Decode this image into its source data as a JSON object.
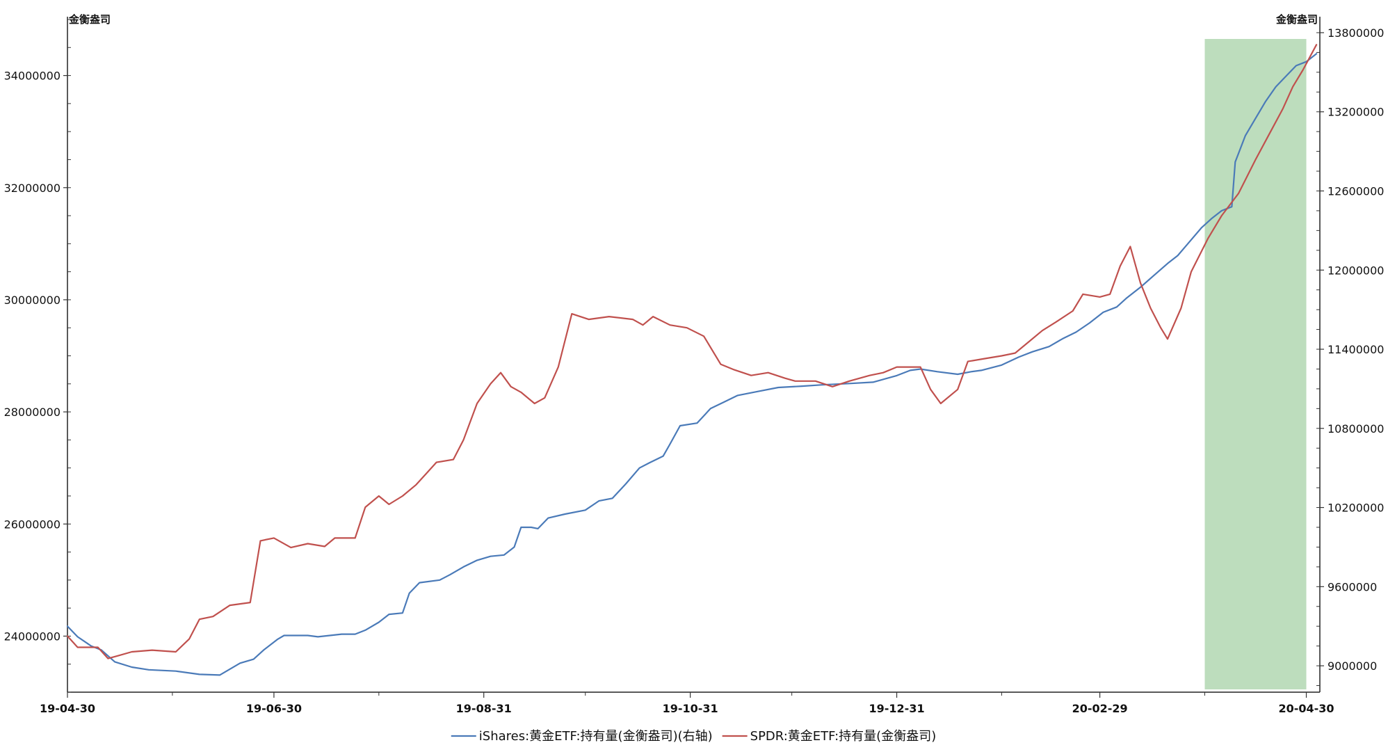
{
  "chart_data": {
    "type": "line",
    "left_axis": {
      "unit_label": "金衡盎司",
      "ylim": [
        23000000,
        35000000
      ],
      "ticks": [
        24000000,
        26000000,
        28000000,
        30000000,
        32000000,
        34000000
      ],
      "tick_labels": [
        "24000000",
        "26000000",
        "28000000",
        "30000000",
        "32000000",
        "34000000"
      ]
    },
    "right_axis": {
      "unit_label": "金衡盎司",
      "ylim": [
        8800000,
        13900000
      ],
      "ticks": [
        9000000,
        9600000,
        10200000,
        10800000,
        11400000,
        12000000,
        12600000,
        13200000,
        13800000
      ],
      "tick_labels": [
        "9000000",
        "9600000",
        "10200000",
        "10800000",
        "11400000",
        "12000000",
        "12600000",
        "13200000",
        "13800000"
      ]
    },
    "x_axis": {
      "range": [
        "2019-04-30",
        "2020-05-04"
      ],
      "tick_dates": [
        "2019-04-30",
        "2019-06-30",
        "2019-08-31",
        "2019-10-31",
        "2019-12-31",
        "2020-02-29",
        "2020-04-30"
      ],
      "tick_labels": [
        "19-04-30",
        "19-06-30",
        "19-08-31",
        "19-10-31",
        "19-12-31",
        "20-02-29",
        "20-04-30"
      ],
      "minor_tick_dates": [
        "2019-05-31",
        "2019-07-31",
        "2019-09-30",
        "2019-11-30",
        "2020-01-31",
        "2020-03-31"
      ]
    },
    "highlight": {
      "from": "2020-03-31",
      "to": "2020-04-30",
      "color": "#b9dbb9"
    },
    "series": [
      {
        "name": "iShares:黄金ETF:持有量(金衡盎司)(右轴)",
        "axis": "right",
        "color": "#4a7ab8",
        "points": [
          [
            "2019-04-30",
            9300000
          ],
          [
            "2019-05-03",
            9220000
          ],
          [
            "2019-05-07",
            9150000
          ],
          [
            "2019-05-10",
            9120000
          ],
          [
            "2019-05-14",
            9030000
          ],
          [
            "2019-05-19",
            8990000
          ],
          [
            "2019-05-24",
            8970000
          ],
          [
            "2019-06-01",
            8960000
          ],
          [
            "2019-06-08",
            8935000
          ],
          [
            "2019-06-14",
            8930000
          ],
          [
            "2019-06-16",
            8960000
          ],
          [
            "2019-06-20",
            9020000
          ],
          [
            "2019-06-24",
            9050000
          ],
          [
            "2019-06-27",
            9120000
          ],
          [
            "2019-07-01",
            9200000
          ],
          [
            "2019-07-03",
            9230000
          ],
          [
            "2019-07-10",
            9230000
          ],
          [
            "2019-07-13",
            9220000
          ],
          [
            "2019-07-20",
            9240000
          ],
          [
            "2019-07-24",
            9240000
          ],
          [
            "2019-07-27",
            9270000
          ],
          [
            "2019-07-31",
            9330000
          ],
          [
            "2019-08-03",
            9390000
          ],
          [
            "2019-08-07",
            9400000
          ],
          [
            "2019-08-09",
            9550000
          ],
          [
            "2019-08-12",
            9630000
          ],
          [
            "2019-08-18",
            9650000
          ],
          [
            "2019-08-21",
            9690000
          ],
          [
            "2019-08-25",
            9750000
          ],
          [
            "2019-08-29",
            9800000
          ],
          [
            "2019-09-02",
            9830000
          ],
          [
            "2019-09-06",
            9840000
          ],
          [
            "2019-09-09",
            9900000
          ],
          [
            "2019-09-11",
            10050000
          ],
          [
            "2019-09-14",
            10050000
          ],
          [
            "2019-09-16",
            10040000
          ],
          [
            "2019-09-19",
            10120000
          ],
          [
            "2019-09-24",
            10150000
          ],
          [
            "2019-09-30",
            10180000
          ],
          [
            "2019-10-04",
            10250000
          ],
          [
            "2019-10-08",
            10270000
          ],
          [
            "2019-10-12",
            10380000
          ],
          [
            "2019-10-16",
            10500000
          ],
          [
            "2019-10-19",
            10540000
          ],
          [
            "2019-10-23",
            10590000
          ],
          [
            "2019-10-25",
            10680000
          ],
          [
            "2019-10-28",
            10820000
          ],
          [
            "2019-11-02",
            10840000
          ],
          [
            "2019-11-06",
            10950000
          ],
          [
            "2019-11-10",
            11000000
          ],
          [
            "2019-11-14",
            11050000
          ],
          [
            "2019-11-20",
            11080000
          ],
          [
            "2019-11-26",
            11110000
          ],
          [
            "2019-12-03",
            11120000
          ],
          [
            "2019-12-09",
            11130000
          ],
          [
            "2019-12-17",
            11140000
          ],
          [
            "2019-12-24",
            11150000
          ],
          [
            "2019-12-31",
            11200000
          ],
          [
            "2020-01-04",
            11240000
          ],
          [
            "2020-01-07",
            11250000
          ],
          [
            "2020-01-12",
            11230000
          ],
          [
            "2020-01-18",
            11210000
          ],
          [
            "2020-01-22",
            11230000
          ],
          [
            "2020-01-25",
            11240000
          ],
          [
            "2020-01-31",
            11280000
          ],
          [
            "2020-02-05",
            11340000
          ],
          [
            "2020-02-09",
            11380000
          ],
          [
            "2020-02-14",
            11420000
          ],
          [
            "2020-02-18",
            11480000
          ],
          [
            "2020-02-22",
            11530000
          ],
          [
            "2020-02-26",
            11600000
          ],
          [
            "2020-03-01",
            11680000
          ],
          [
            "2020-03-05",
            11720000
          ],
          [
            "2020-03-08",
            11790000
          ],
          [
            "2020-03-12",
            11870000
          ],
          [
            "2020-03-16",
            11960000
          ],
          [
            "2020-03-20",
            12050000
          ],
          [
            "2020-03-23",
            12110000
          ],
          [
            "2020-03-26",
            12200000
          ],
          [
            "2020-03-30",
            12320000
          ],
          [
            "2020-04-02",
            12390000
          ],
          [
            "2020-04-05",
            12450000
          ],
          [
            "2020-04-08",
            12480000
          ],
          [
            "2020-04-09",
            12820000
          ],
          [
            "2020-04-12",
            13020000
          ],
          [
            "2020-04-15",
            13150000
          ],
          [
            "2020-04-18",
            13280000
          ],
          [
            "2020-04-21",
            13390000
          ],
          [
            "2020-04-24",
            13470000
          ],
          [
            "2020-04-27",
            13550000
          ],
          [
            "2020-04-30",
            13580000
          ],
          [
            "2020-05-03",
            13640000
          ]
        ]
      },
      {
        "name": "SPDR:黄金ETF:持有量(金衡盎司)",
        "axis": "left",
        "color": "#c0504d",
        "points": [
          [
            "2019-04-30",
            24000000
          ],
          [
            "2019-05-03",
            23800000
          ],
          [
            "2019-05-09",
            23800000
          ],
          [
            "2019-05-12",
            23600000
          ],
          [
            "2019-05-15",
            23650000
          ],
          [
            "2019-05-19",
            23720000
          ],
          [
            "2019-05-25",
            23750000
          ],
          [
            "2019-06-01",
            23720000
          ],
          [
            "2019-06-05",
            23950000
          ],
          [
            "2019-06-08",
            24300000
          ],
          [
            "2019-06-12",
            24350000
          ],
          [
            "2019-06-17",
            24550000
          ],
          [
            "2019-06-23",
            24600000
          ],
          [
            "2019-06-26",
            25700000
          ],
          [
            "2019-06-30",
            25750000
          ],
          [
            "2019-07-05",
            25580000
          ],
          [
            "2019-07-10",
            25650000
          ],
          [
            "2019-07-15",
            25600000
          ],
          [
            "2019-07-18",
            25750000
          ],
          [
            "2019-07-24",
            25750000
          ],
          [
            "2019-07-27",
            26300000
          ],
          [
            "2019-07-31",
            26500000
          ],
          [
            "2019-08-03",
            26350000
          ],
          [
            "2019-08-07",
            26500000
          ],
          [
            "2019-08-11",
            26700000
          ],
          [
            "2019-08-14",
            26900000
          ],
          [
            "2019-08-17",
            27100000
          ],
          [
            "2019-08-22",
            27150000
          ],
          [
            "2019-08-25",
            27500000
          ],
          [
            "2019-08-29",
            28150000
          ],
          [
            "2019-09-02",
            28500000
          ],
          [
            "2019-09-05",
            28700000
          ],
          [
            "2019-09-08",
            28450000
          ],
          [
            "2019-09-11",
            28350000
          ],
          [
            "2019-09-15",
            28150000
          ],
          [
            "2019-09-18",
            28250000
          ],
          [
            "2019-09-22",
            28800000
          ],
          [
            "2019-09-26",
            29750000
          ],
          [
            "2019-10-01",
            29650000
          ],
          [
            "2019-10-07",
            29700000
          ],
          [
            "2019-10-14",
            29650000
          ],
          [
            "2019-10-17",
            29550000
          ],
          [
            "2019-10-20",
            29700000
          ],
          [
            "2019-10-25",
            29550000
          ],
          [
            "2019-10-30",
            29500000
          ],
          [
            "2019-11-04",
            29350000
          ],
          [
            "2019-11-09",
            28850000
          ],
          [
            "2019-11-13",
            28750000
          ],
          [
            "2019-11-18",
            28650000
          ],
          [
            "2019-11-23",
            28700000
          ],
          [
            "2019-11-28",
            28600000
          ],
          [
            "2019-12-01",
            28550000
          ],
          [
            "2019-12-07",
            28550000
          ],
          [
            "2019-12-12",
            28450000
          ],
          [
            "2019-12-17",
            28550000
          ],
          [
            "2019-12-23",
            28650000
          ],
          [
            "2019-12-27",
            28700000
          ],
          [
            "2019-12-31",
            28800000
          ],
          [
            "2020-01-07",
            28800000
          ],
          [
            "2020-01-10",
            28400000
          ],
          [
            "2020-01-13",
            28150000
          ],
          [
            "2020-01-18",
            28400000
          ],
          [
            "2020-01-21",
            28900000
          ],
          [
            "2020-01-26",
            28950000
          ],
          [
            "2020-01-31",
            29000000
          ],
          [
            "2020-02-04",
            29050000
          ],
          [
            "2020-02-08",
            29250000
          ],
          [
            "2020-02-12",
            29450000
          ],
          [
            "2020-02-16",
            29600000
          ],
          [
            "2020-02-21",
            29800000
          ],
          [
            "2020-02-24",
            30100000
          ],
          [
            "2020-02-29",
            30050000
          ],
          [
            "2020-03-03",
            30100000
          ],
          [
            "2020-03-06",
            30600000
          ],
          [
            "2020-03-09",
            30950000
          ],
          [
            "2020-03-12",
            30300000
          ],
          [
            "2020-03-15",
            29850000
          ],
          [
            "2020-03-18",
            29500000
          ],
          [
            "2020-03-20",
            29300000
          ],
          [
            "2020-03-24",
            29850000
          ],
          [
            "2020-03-27",
            30500000
          ],
          [
            "2020-04-01",
            31100000
          ],
          [
            "2020-04-05",
            31500000
          ],
          [
            "2020-04-10",
            31900000
          ],
          [
            "2020-04-15",
            32500000
          ],
          [
            "2020-04-19",
            32950000
          ],
          [
            "2020-04-23",
            33400000
          ],
          [
            "2020-04-26",
            33800000
          ],
          [
            "2020-04-29",
            34100000
          ],
          [
            "2020-05-03",
            34550000
          ]
        ]
      }
    ],
    "legend": {
      "placement": "bottom-center"
    }
  }
}
